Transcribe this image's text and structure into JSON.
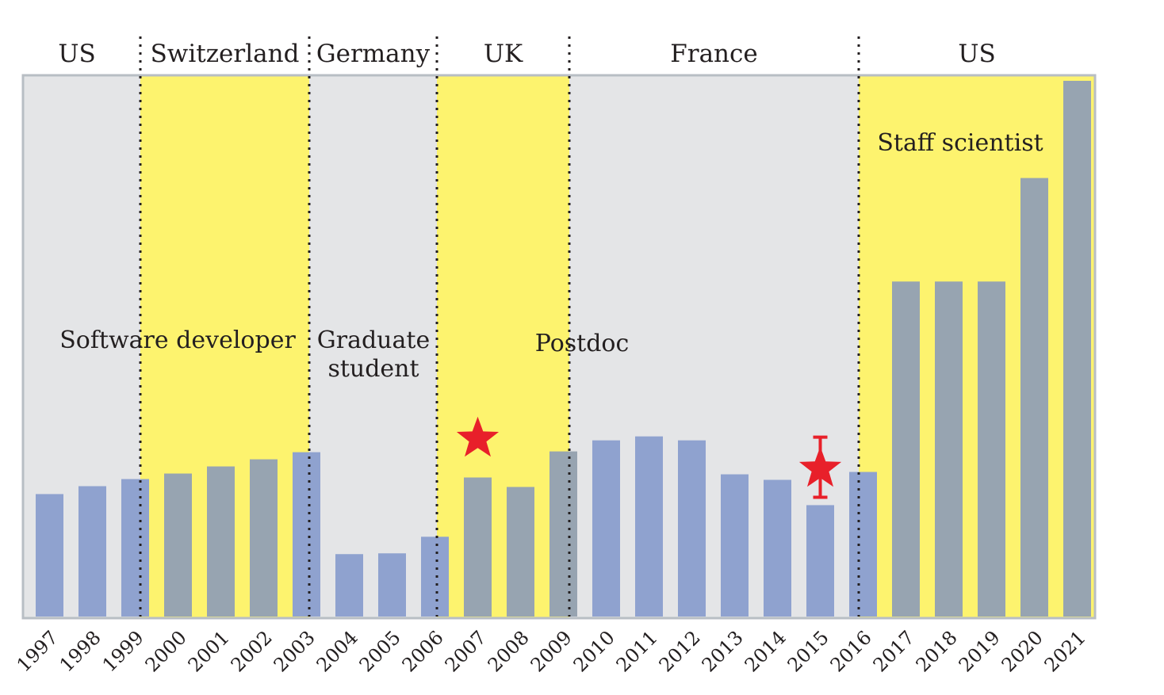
{
  "chart_data": {
    "type": "bar",
    "title": "",
    "xlabel": "",
    "ylabel": "",
    "categories": [
      "1997",
      "1998",
      "1999",
      "2000",
      "2001",
      "2002",
      "2003",
      "2004",
      "2005",
      "2006",
      "2007",
      "2008",
      "2009",
      "2010",
      "2011",
      "2012",
      "2013",
      "2014",
      "2015",
      "2016",
      "2017",
      "2018",
      "2019",
      "2020",
      "2021"
    ],
    "values": [
      155,
      165,
      174,
      181,
      190,
      199,
      208,
      79,
      80,
      101,
      176,
      164,
      209,
      223,
      228,
      223,
      180,
      173,
      141,
      183,
      424,
      424,
      424,
      555,
      678
    ],
    "ylim": [
      0,
      680
    ],
    "bar_styles": [
      "blue",
      "blue",
      "blue",
      "gray",
      "gray",
      "gray",
      "blue",
      "blue",
      "blue",
      "blue",
      "gray",
      "gray",
      "gray",
      "blue",
      "blue",
      "blue",
      "blue",
      "blue",
      "blue",
      "blue",
      "gray",
      "gray",
      "gray",
      "gray",
      "gray"
    ],
    "star_markers": [
      {
        "category": "2007",
        "value": 225,
        "error_bar": false
      },
      {
        "category": "2015",
        "value": 187,
        "error_bar": true,
        "error_low": 151,
        "error_high": 227
      }
    ],
    "periods": [
      {
        "country": "US",
        "start": "1997",
        "end": "1999",
        "shade": "gray"
      },
      {
        "country": "Switzerland",
        "start": "1999",
        "end": "2003",
        "shade": "yellow"
      },
      {
        "country": "Germany",
        "start": "2003",
        "end": "2006",
        "shade": "gray"
      },
      {
        "country": "UK",
        "start": "2006",
        "end": "2009",
        "shade": "yellow"
      },
      {
        "country": "France",
        "start": "2009",
        "end": "2016",
        "shade": "gray"
      },
      {
        "country": "US",
        "start": "2016",
        "end": "2021",
        "shade": "yellow"
      }
    ],
    "roles": [
      {
        "label": "Software developer",
        "lines": [
          "Software developer"
        ]
      },
      {
        "label": "Graduate student",
        "lines": [
          "Graduate",
          "student"
        ]
      },
      {
        "label": "Postdoc",
        "lines": [
          "Postdoc"
        ]
      },
      {
        "label": "Staff scientist",
        "lines": [
          "Staff scientist"
        ]
      }
    ],
    "grid": false,
    "legend": "none"
  },
  "colors": {
    "bar_blue": "#8fa2cf",
    "bar_gray": "#97a4b1",
    "band_gray": "#e4e5e7",
    "band_yellow": "#fdf36e",
    "frame": "#b8bec4",
    "star": "#e8202a",
    "text": "#231f20"
  }
}
